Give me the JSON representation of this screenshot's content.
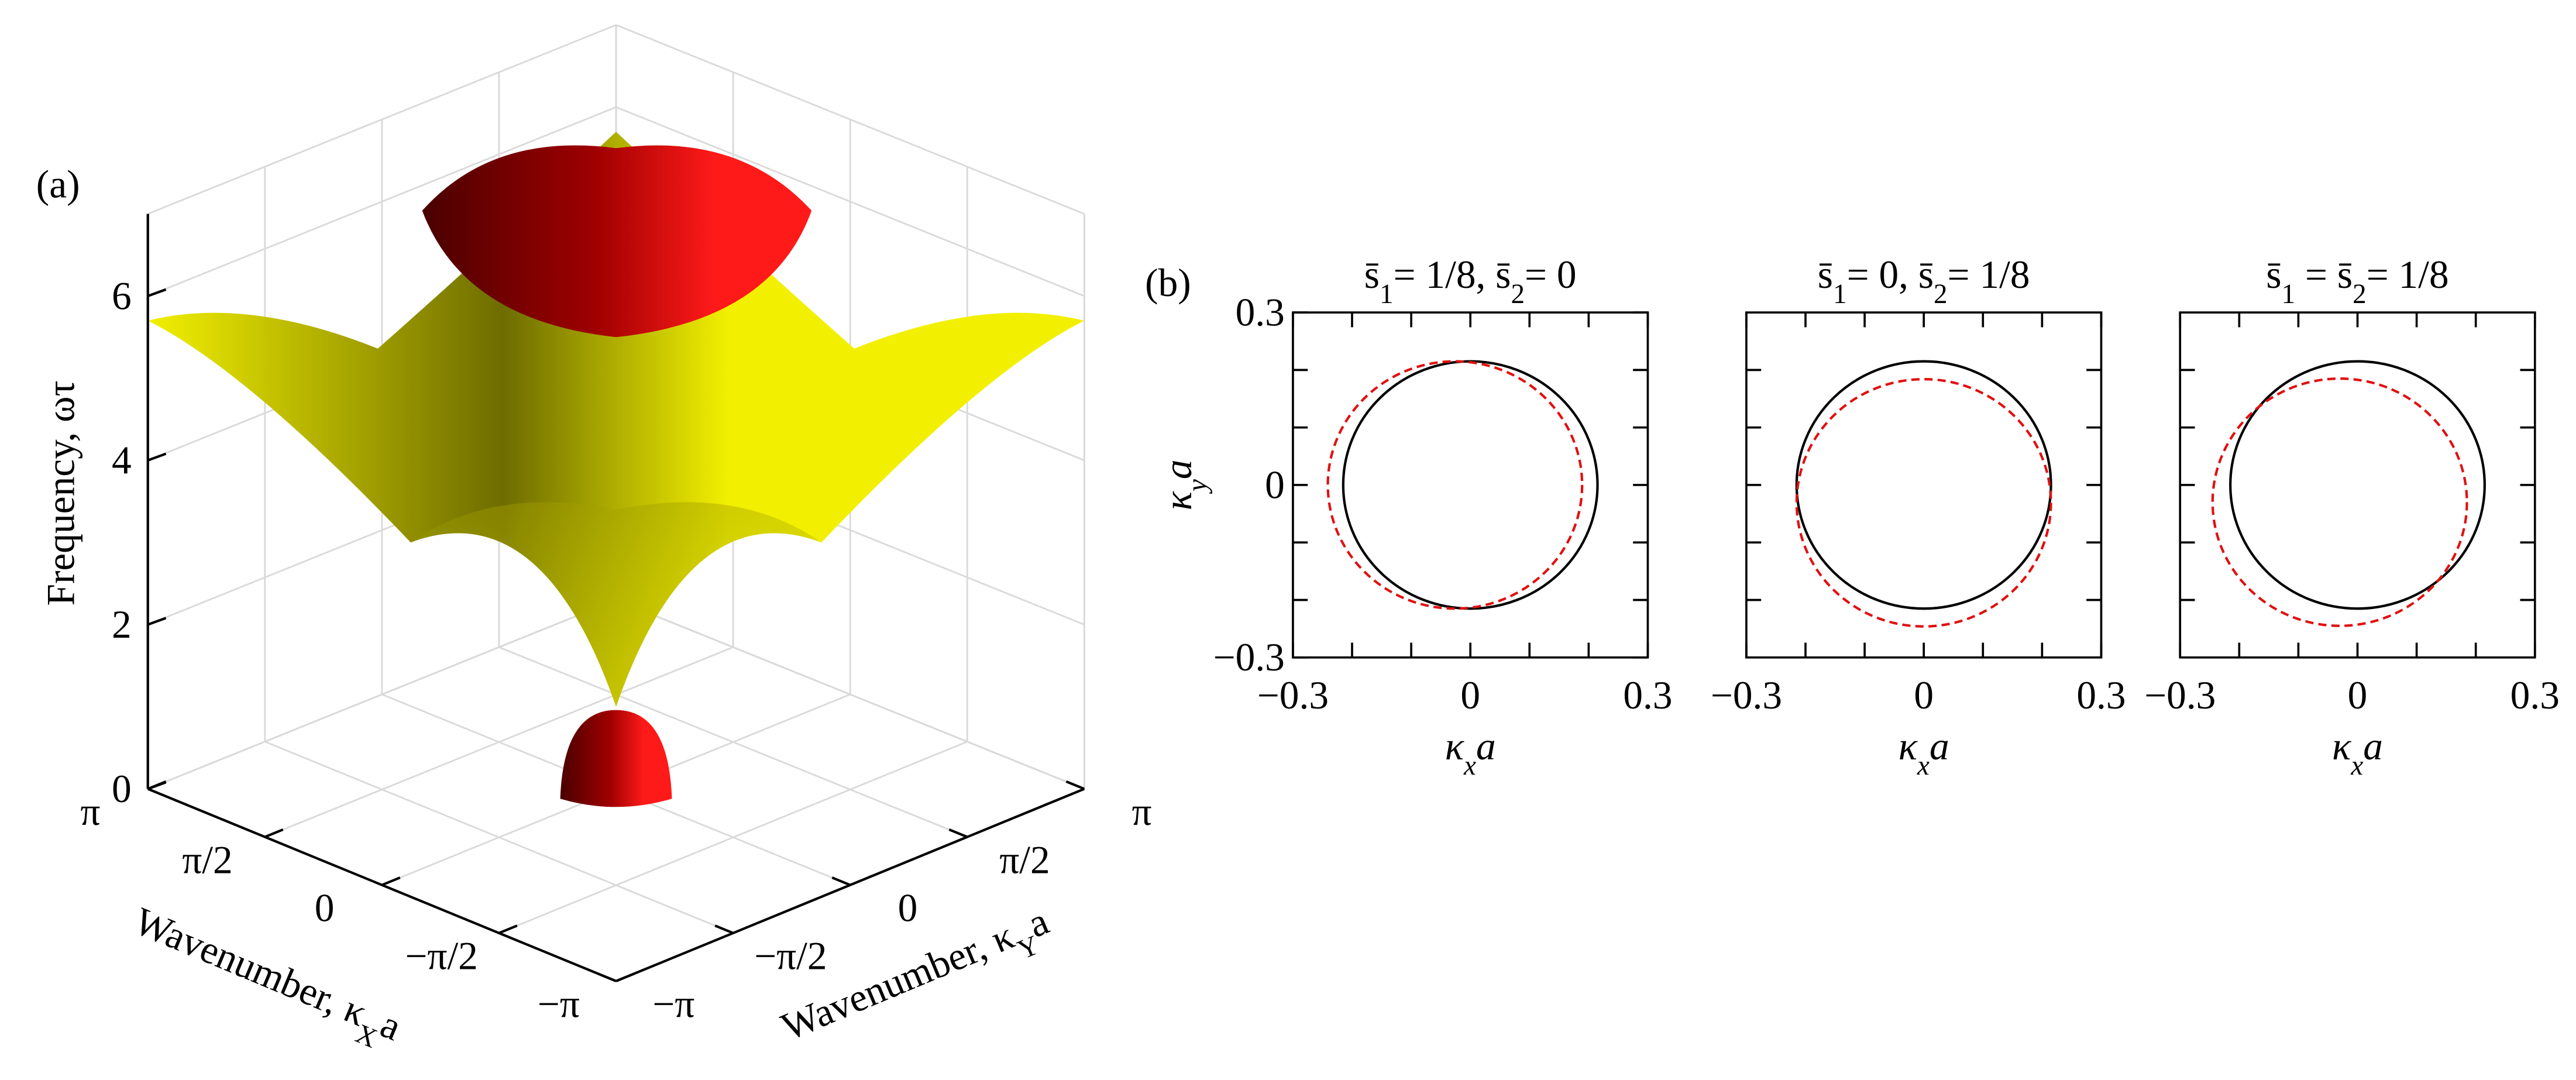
{
  "chart_data": [
    {
      "type": "surface3d",
      "panel_label": "(a)",
      "zlabel": [
        "Frequency, ωτ"
      ],
      "xlabel": [
        "Wavenumber, κ",
        "X",
        "a"
      ],
      "ylabel": [
        "Wavenumber, κ",
        "Y",
        "a"
      ],
      "zlim": [
        0,
        7
      ],
      "zticks": [
        0,
        2,
        4,
        6
      ],
      "xlim": [
        -3.14159,
        3.14159
      ],
      "xticks": [
        {
          "value": 3.14159,
          "label": "π"
        },
        {
          "value": 1.5708,
          "label": "π/2"
        },
        0,
        {
          "value": -1.5708,
          "label": "−π/2"
        },
        {
          "value": -3.14159,
          "label": "−π"
        }
      ],
      "ylim": [
        -3.14159,
        3.14159
      ],
      "yticks": [
        {
          "value": -3.14159,
          "label": "−π"
        },
        {
          "value": -1.5708,
          "label": "−π/2"
        },
        0,
        {
          "value": 1.5708,
          "label": "π/2"
        },
        {
          "value": 3.14159,
          "label": "π"
        }
      ],
      "colors": [
        "#f2f000",
        "#ff1a1a"
      ],
      "grid": true
    },
    {
      "type": "ellipses",
      "panel_label": "(b)",
      "title": [
        "s̄",
        "1",
        "= 1/8, s̄",
        "2",
        "= 0"
      ],
      "xlabel": [
        "κ",
        "x",
        "a"
      ],
      "ylabel": [
        "κ",
        "y",
        "a"
      ],
      "xlim": [
        -0.3,
        0.3
      ],
      "xticks": [
        {
          "value": -0.3,
          "label": "−0.3"
        },
        0,
        0.3
      ],
      "xminor": [
        -0.2,
        -0.1,
        0.1,
        0.2
      ],
      "ylim": [
        -0.3,
        0.3
      ],
      "yticks": [
        {
          "value": -0.3,
          "label": "−0.3"
        },
        0,
        0.3
      ],
      "yminor": [
        -0.2,
        -0.1,
        0.1,
        0.2
      ],
      "series": [
        {
          "color": "#000000",
          "dash": false,
          "center": [
            0,
            0
          ],
          "radius": 0.215
        },
        {
          "color": "#e01010",
          "dash": true,
          "center": [
            -0.026,
            0
          ],
          "radius": 0.215
        }
      ]
    },
    {
      "type": "ellipses",
      "title": [
        "s̄",
        "1",
        "= 0, s̄",
        "2",
        "= 1/8"
      ],
      "xlabel": [
        "κ",
        "x",
        "a"
      ],
      "xlim": [
        -0.3,
        0.3
      ],
      "xticks": [
        {
          "value": -0.3,
          "label": "−0.3"
        },
        0,
        0.3
      ],
      "xminor": [
        -0.2,
        -0.1,
        0.1,
        0.2
      ],
      "ylim": [
        -0.3,
        0.3
      ],
      "yminor": [
        -0.2,
        -0.1,
        0,
        0.1,
        0.2
      ],
      "series": [
        {
          "color": "#000000",
          "dash": false,
          "center": [
            0,
            0
          ],
          "radius": 0.215
        },
        {
          "color": "#e01010",
          "dash": true,
          "center": [
            0,
            -0.031
          ],
          "radius": 0.215
        }
      ]
    },
    {
      "type": "ellipses",
      "title": [
        "s̄",
        "1",
        " = s̄",
        "2",
        "= 1/8"
      ],
      "xlabel": [
        "κ",
        "x",
        "a"
      ],
      "xlim": [
        -0.3,
        0.3
      ],
      "xticks": [
        {
          "value": -0.3,
          "label": "−0.3"
        },
        0,
        0.3
      ],
      "xminor": [
        -0.2,
        -0.1,
        0.1,
        0.2
      ],
      "ylim": [
        -0.3,
        0.3
      ],
      "yminor": [
        -0.2,
        -0.1,
        0,
        0.1,
        0.2
      ],
      "series": [
        {
          "color": "#000000",
          "dash": false,
          "center": [
            0,
            0
          ],
          "radius": 0.215
        },
        {
          "color": "#e01010",
          "dash": true,
          "center": [
            -0.03,
            -0.03
          ],
          "radius": 0.215
        }
      ]
    }
  ]
}
